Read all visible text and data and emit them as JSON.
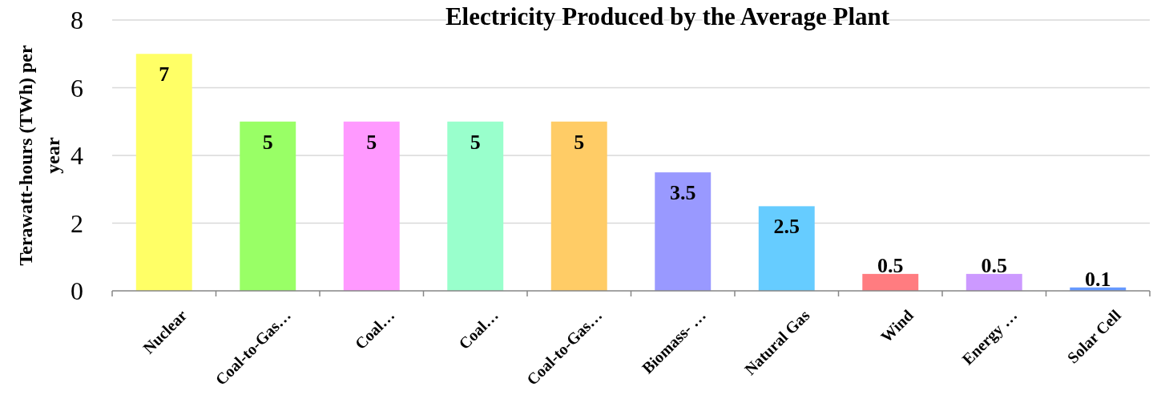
{
  "chart_data": {
    "type": "bar",
    "title": "Electricity Produced by the Average Plant",
    "ylabel": "Terawatt-hours (TWh) per year",
    "categories": [
      "Nuclear",
      "Coal-to-Gas…",
      "Coal…",
      "Coal…",
      "Coal-to-Gas…",
      "Biomass- …",
      "Natural Gas",
      "Wind",
      "Energy …",
      "Solar Cell"
    ],
    "values": [
      7,
      5,
      5,
      5,
      5,
      3.5,
      2.5,
      0.5,
      0.5,
      0.1
    ],
    "colors": [
      "#ffff66",
      "#99ff66",
      "#ff99ff",
      "#99ffcc",
      "#ffcc66",
      "#9999ff",
      "#66ccff",
      "#ff7c80",
      "#cc99ff",
      "#6699ff"
    ],
    "ylim": [
      0,
      8
    ],
    "yticks": [
      0,
      2,
      4,
      6,
      8
    ],
    "grid": "y",
    "data_labels": true
  }
}
